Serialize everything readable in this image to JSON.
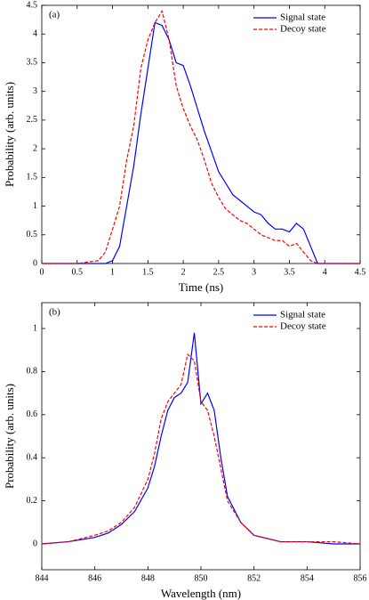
{
  "chart_data": [
    {
      "type": "line",
      "annotation": "(a)",
      "xlabel": "Time (ns)",
      "ylabel": "Probability (arb. units)",
      "xlim": [
        0,
        4.5
      ],
      "ylim": [
        0,
        4.5
      ],
      "xticks": [
        0,
        0.5,
        1,
        1.5,
        2,
        2.5,
        3,
        3.5,
        4,
        4.5
      ],
      "yticks": [
        0,
        0.5,
        1,
        1.5,
        2,
        2.5,
        3,
        3.5,
        4,
        4.5
      ],
      "legend": "upper right",
      "x": [
        0,
        0.5,
        0.8,
        0.9,
        1.0,
        1.1,
        1.2,
        1.3,
        1.4,
        1.5,
        1.6,
        1.7,
        1.8,
        1.9,
        2.0,
        2.1,
        2.2,
        2.3,
        2.4,
        2.5,
        2.6,
        2.7,
        2.8,
        2.9,
        3.0,
        3.1,
        3.2,
        3.3,
        3.4,
        3.5,
        3.6,
        3.7,
        3.8,
        3.9,
        4.0,
        4.5
      ],
      "series": [
        {
          "name": "Signal state",
          "color": "#0000ff",
          "linestyle": "solid",
          "values": [
            0,
            0,
            0,
            0,
            0.05,
            0.3,
            1.0,
            1.7,
            2.6,
            3.4,
            4.2,
            4.15,
            3.9,
            3.5,
            3.45,
            3.1,
            2.7,
            2.3,
            1.95,
            1.6,
            1.4,
            1.2,
            1.1,
            1.0,
            0.9,
            0.85,
            0.7,
            0.6,
            0.6,
            0.55,
            0.7,
            0.6,
            0.3,
            0,
            0,
            0
          ]
        },
        {
          "name": "Decoy state",
          "color": "#ff0000",
          "linestyle": "dashed",
          "values": [
            0,
            0,
            0.05,
            0.2,
            0.6,
            1.0,
            1.8,
            2.4,
            3.4,
            3.9,
            4.2,
            4.4,
            3.9,
            3.1,
            2.7,
            2.4,
            2.15,
            1.8,
            1.4,
            1.15,
            0.95,
            0.85,
            0.75,
            0.7,
            0.6,
            0.5,
            0.45,
            0.4,
            0.4,
            0.3,
            0.35,
            0.2,
            0.05,
            0,
            0,
            0
          ]
        }
      ]
    },
    {
      "type": "line",
      "annotation": "(b)",
      "xlabel": "Wavelength (nm)",
      "ylabel": "Probability (arb. units)",
      "xlim": [
        844,
        856
      ],
      "ylim": [
        -0.12,
        1.12
      ],
      "xticks": [
        844,
        846,
        848,
        850,
        852,
        854,
        856
      ],
      "yticks": [
        0,
        0.2,
        0.4,
        0.6,
        0.8,
        1
      ],
      "legend": "upper right",
      "x": [
        844,
        845,
        846,
        846.5,
        847,
        847.5,
        848,
        848.25,
        848.5,
        848.75,
        849,
        849.25,
        849.5,
        849.75,
        850,
        850.25,
        850.5,
        850.75,
        851,
        851.5,
        852,
        853,
        854,
        855,
        856
      ],
      "series": [
        {
          "name": "Signal state",
          "color": "#0000ff",
          "linestyle": "solid",
          "values": [
            0,
            0.01,
            0.03,
            0.05,
            0.09,
            0.15,
            0.26,
            0.36,
            0.5,
            0.62,
            0.68,
            0.7,
            0.75,
            0.98,
            0.65,
            0.7,
            0.62,
            0.4,
            0.22,
            0.1,
            0.04,
            0.01,
            0.01,
            0,
            0
          ]
        },
        {
          "name": "Decoy state",
          "color": "#ff0000",
          "linestyle": "dashed",
          "values": [
            0,
            0.01,
            0.04,
            0.06,
            0.1,
            0.17,
            0.3,
            0.42,
            0.58,
            0.66,
            0.7,
            0.74,
            0.88,
            0.85,
            0.66,
            0.62,
            0.5,
            0.35,
            0.2,
            0.1,
            0.04,
            0.01,
            0.01,
            0.01,
            0
          ]
        }
      ]
    }
  ]
}
